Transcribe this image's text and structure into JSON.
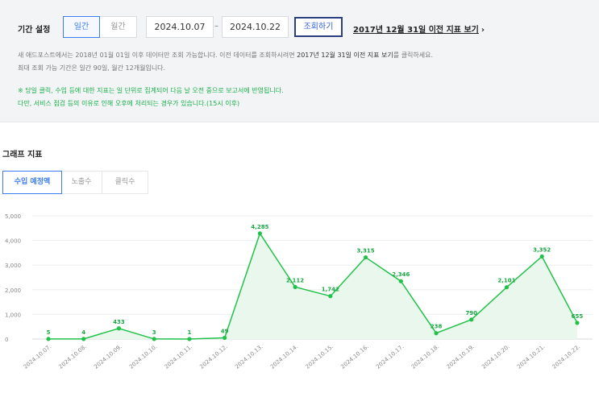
{
  "period": {
    "label": "기간 설정",
    "tabs": [
      {
        "label": "일간",
        "active": true
      },
      {
        "label": "월간",
        "active": false
      }
    ],
    "start_date": "2024.10.07",
    "separator": "–",
    "end_date": "2024.10.22",
    "search_button": "조회하기",
    "legacy_link": "2017년 12월 31일 이전 지표 보기",
    "legacy_arrow": "›"
  },
  "notes": {
    "line1_pre": "새 애드포스트에서는 2018년 01월 01일 이후 데이터만 조회 가능합니다. 이전 데이터를 조회하시려면 ",
    "line1_emph": "2017년 12월 31일 이전 지표 보기",
    "line1_post": "를 클릭하세요.",
    "line2": "최대 조회 가능 기간은 일간 90일, 월간 12개월입니다.",
    "green1": "※ 당일 클릭, 수입 등에 대한 지표는 일 단위로 집계되어 다음 날 오전 중으로 보고서에 반영됩니다.",
    "green2": "다만, 서비스 점검 등의 이유로 인해 오후에 처리되는 경우가 있습니다.(15시 이후)"
  },
  "graph": {
    "title": "그래프 지표",
    "tabs": [
      {
        "label": "수입 예정액",
        "active": true
      },
      {
        "label": "노출수",
        "active": false
      },
      {
        "label": "클릭수",
        "active": false
      }
    ]
  },
  "colors": {
    "accent": "#3b7cf0",
    "line": "#22c24a",
    "fill": "#e9f7ec",
    "green_note": "#19b04a"
  },
  "chart_data": {
    "type": "area",
    "x": [
      "2024.10.07.",
      "2024.10.08.",
      "2024.10.09.",
      "2024.10.10.",
      "2024.10.11.",
      "2024.10.12.",
      "2024.10.13.",
      "2024.10.14.",
      "2024.10.15.",
      "2024.10.16.",
      "2024.10.17.",
      "2024.10.18.",
      "2024.10.19.",
      "2024.10.20.",
      "2024.10.21.",
      "2024.10.22."
    ],
    "values": [
      5,
      4,
      433,
      3,
      1,
      49,
      4285,
      2112,
      1742,
      3315,
      2346,
      238,
      790,
      2101,
      3352,
      655
    ],
    "value_labels": [
      "5",
      "4",
      "433",
      "3",
      "1",
      "49",
      "4,285",
      "2,112",
      "1,742",
      "3,315",
      "2,346",
      "238",
      "790",
      "2,101",
      "3,352",
      "655"
    ],
    "y_ticks": [
      0,
      1000,
      2000,
      3000,
      4000,
      5000
    ],
    "y_tick_labels": [
      "0",
      "1,000",
      "2,000",
      "3,000",
      "4,000",
      "5,000"
    ],
    "ylim": [
      0,
      5000
    ],
    "grid": true
  }
}
